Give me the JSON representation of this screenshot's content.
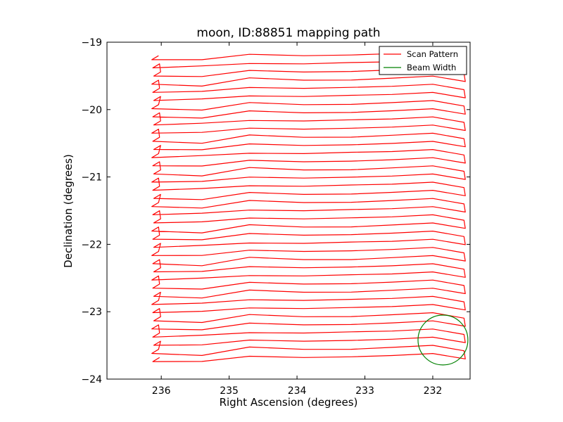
{
  "chart_data": {
    "type": "line",
    "title": "moon, ID:88851 mapping path",
    "xlabel": "Right Ascension (degrees)",
    "ylabel": "Declination (degrees)",
    "xlim": [
      236.8,
      231.45
    ],
    "ylim": [
      -24,
      -19
    ],
    "x_inverted": true,
    "x_ticks": [
      236,
      235,
      234,
      233,
      232
    ],
    "x_tick_labels": [
      "236",
      "235",
      "234",
      "233",
      "232"
    ],
    "y_ticks": [
      -19,
      -20,
      -21,
      -22,
      -23,
      -24
    ],
    "y_tick_labels": [
      "−19",
      "−20",
      "−21",
      "−22",
      "−23",
      "−24"
    ],
    "grid": false,
    "legend": {
      "position": "top-right",
      "entries": [
        {
          "label": "Scan Pattern",
          "color": "#ff0000"
        },
        {
          "label": "Beam Width",
          "color": "#008000"
        }
      ]
    },
    "series": [
      {
        "name": "Scan Pattern",
        "color": "#ff0000",
        "description_of_path": "raster scan of 38 horizontal legs spanning RA ~236.1 to ~231.5, stepping from Dec -19.26 down to -23.74",
        "ra_range": [
          231.5,
          236.1
        ],
        "dec_start": -19.26,
        "dec_end": -23.74,
        "legs": 38
      },
      {
        "name": "Beam Width",
        "color": "#008000",
        "shape": "circle",
        "center": [
          231.85,
          -23.42
        ],
        "radius_dec": 0.37
      }
    ]
  }
}
